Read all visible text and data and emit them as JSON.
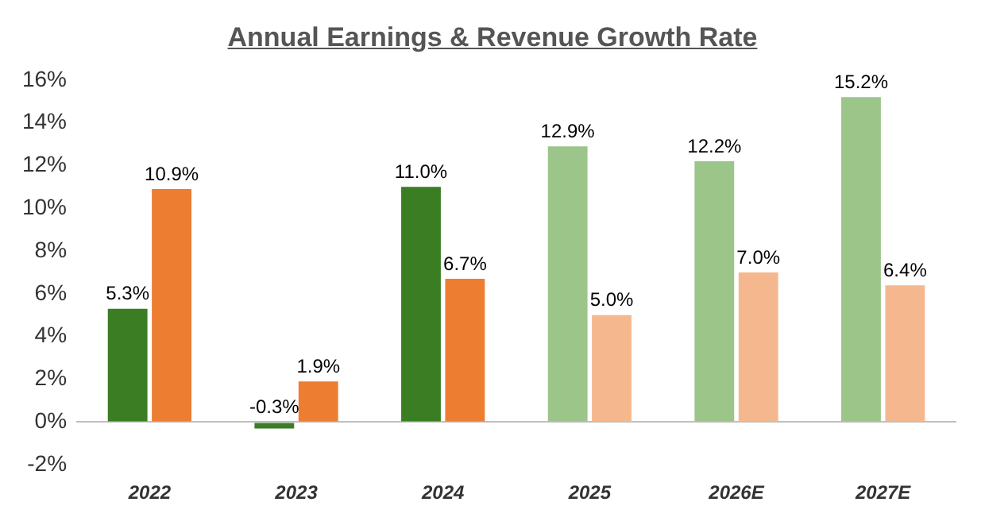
{
  "chart_data": {
    "type": "bar",
    "title": "Annual Earnings & Revenue Growth Rate",
    "categories": [
      "2022",
      "2023",
      "2024",
      "2025",
      "2026E",
      "2027E"
    ],
    "series": [
      {
        "colors": [
          "#3b7d23",
          "#3b7d23",
          "#3b7d23",
          "#9cc58a",
          "#9cc58a",
          "#9cc58a"
        ],
        "values": [
          5.3,
          -0.3,
          11.0,
          12.9,
          12.2,
          15.2
        ],
        "value_labels": [
          "5.3%",
          "-0.3%",
          "11.0%",
          "12.9%",
          "12.2%",
          "15.2%"
        ]
      },
      {
        "colors": [
          "#ed7d31",
          "#ed7d31",
          "#ed7d31",
          "#f5b88e",
          "#f5b88e",
          "#f5b88e"
        ],
        "values": [
          10.9,
          1.9,
          6.7,
          5.0,
          7.0,
          6.4
        ],
        "value_labels": [
          "10.9%",
          "1.9%",
          "6.7%",
          "5.0%",
          "7.0%",
          "6.4%"
        ]
      }
    ],
    "ylim": [
      -2,
      16
    ],
    "yticks": [
      {
        "value": -2,
        "label": "-2%"
      },
      {
        "value": 0,
        "label": "0%"
      },
      {
        "value": 2,
        "label": "2%"
      },
      {
        "value": 4,
        "label": "4%"
      },
      {
        "value": 6,
        "label": "6%"
      },
      {
        "value": 8,
        "label": "8%"
      },
      {
        "value": 10,
        "label": "10%"
      },
      {
        "value": 12,
        "label": "12%"
      },
      {
        "value": 14,
        "label": "14%"
      },
      {
        "value": 16,
        "label": "16%"
      }
    ],
    "legend": false
  }
}
